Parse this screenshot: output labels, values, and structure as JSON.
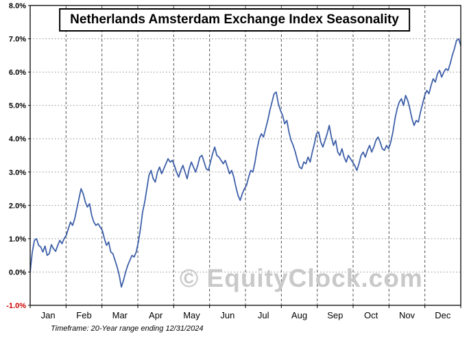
{
  "title": "Netherlands Amsterdam Exchange Index Seasonality",
  "watermark": "© EquityClock.com",
  "footer": "Timeframe: 20-Year range ending 12/31/2024",
  "chart_data": {
    "type": "line",
    "title": "Netherlands Amsterdam Exchange Index Seasonality",
    "xlabel": "",
    "ylabel": "",
    "y_unit": "%",
    "ylim": [
      -1.0,
      8.0
    ],
    "y_ticks": [
      "8.0%",
      "7.0%",
      "6.0%",
      "5.0%",
      "4.0%",
      "3.0%",
      "2.0%",
      "1.0%",
      "0.0%",
      "-1.0%"
    ],
    "months": [
      "Jan",
      "Feb",
      "Mar",
      "Apr",
      "May",
      "Jun",
      "Jul",
      "Aug",
      "Sep",
      "Oct",
      "Nov",
      "Dec"
    ],
    "points_per_month": 17,
    "line_color": "#3d5fa8",
    "grid_color": "#8a8a8a",
    "negative_tick_color": "#cc0000",
    "legend": "none",
    "grid": "on",
    "values_pct": [
      0.0,
      0.6,
      0.95,
      1.0,
      0.8,
      0.75,
      0.6,
      0.78,
      0.5,
      0.55,
      0.82,
      0.7,
      0.62,
      0.8,
      0.95,
      0.85,
      1.0,
      1.1,
      1.3,
      1.5,
      1.4,
      1.6,
      1.9,
      2.2,
      2.5,
      2.35,
      2.1,
      1.95,
      2.05,
      1.7,
      1.5,
      1.4,
      1.45,
      1.35,
      1.25,
      1.0,
      0.8,
      0.9,
      0.6,
      0.55,
      0.35,
      0.15,
      -0.1,
      -0.45,
      -0.25,
      0.0,
      0.2,
      0.35,
      0.5,
      0.45,
      0.6,
      0.9,
      1.3,
      1.8,
      2.1,
      2.5,
      2.9,
      3.05,
      2.8,
      2.7,
      3.0,
      3.15,
      2.95,
      3.1,
      3.25,
      3.4,
      3.3,
      3.35,
      3.2,
      3.0,
      2.85,
      3.05,
      3.2,
      3.0,
      2.8,
      3.1,
      3.3,
      3.15,
      3.0,
      3.2,
      3.45,
      3.5,
      3.3,
      3.1,
      3.05,
      3.3,
      3.55,
      3.75,
      3.5,
      3.45,
      3.35,
      3.25,
      3.35,
      3.15,
      2.95,
      3.05,
      2.85,
      2.55,
      2.3,
      2.15,
      2.35,
      2.5,
      2.6,
      2.85,
      3.05,
      3.0,
      3.3,
      3.7,
      4.0,
      4.15,
      4.05,
      4.3,
      4.55,
      4.85,
      5.1,
      5.35,
      5.4,
      5.05,
      4.85,
      4.7,
      4.45,
      4.55,
      4.2,
      3.95,
      3.8,
      3.6,
      3.35,
      3.15,
      3.1,
      3.3,
      3.25,
      3.45,
      3.3,
      3.6,
      3.85,
      4.15,
      4.2,
      3.9,
      3.75,
      3.95,
      4.15,
      4.4,
      4.05,
      3.8,
      3.95,
      3.6,
      3.5,
      3.7,
      3.45,
      3.3,
      3.5,
      3.4,
      3.3,
      3.2,
      3.05,
      3.25,
      3.5,
      3.6,
      3.45,
      3.65,
      3.8,
      3.6,
      3.75,
      3.95,
      4.05,
      3.9,
      3.7,
      3.65,
      3.8,
      3.7,
      3.9,
      4.2,
      4.6,
      4.9,
      5.1,
      5.2,
      5.0,
      5.3,
      5.15,
      4.9,
      4.6,
      4.4,
      4.55,
      4.5,
      4.8,
      5.05,
      5.3,
      5.45,
      5.35,
      5.6,
      5.8,
      5.7,
      5.95,
      6.05,
      5.85,
      6.0,
      6.1,
      6.05,
      6.25,
      6.5,
      6.7,
      6.95,
      7.0,
      6.8
    ]
  }
}
